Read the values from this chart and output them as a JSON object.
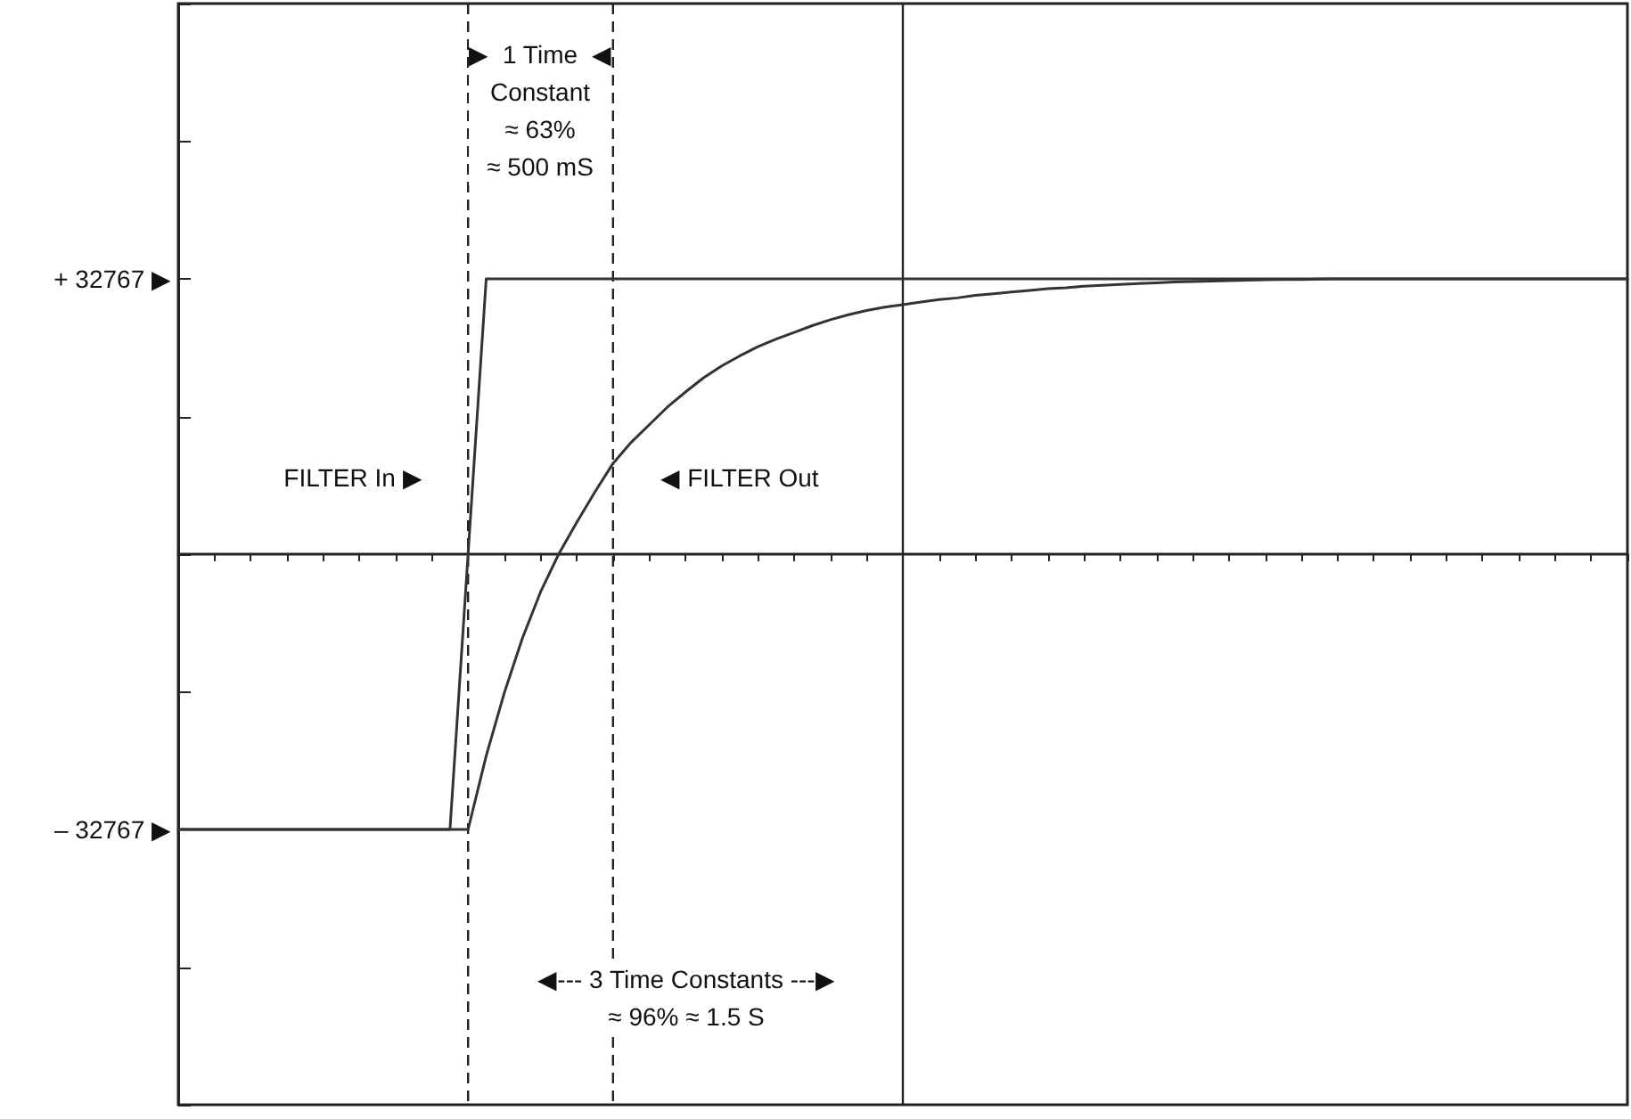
{
  "chart_data": {
    "type": "line",
    "tick_labels": "y",
    "categories": [
      null,
      null,
      null,
      null,
      null,
      null,
      null,
      null,
      null,
      null,
      null,
      null,
      null,
      null,
      null,
      null,
      null,
      null,
      null,
      null,
      null,
      null,
      null,
      null,
      null,
      null,
      null,
      null,
      null,
      null,
      null,
      null,
      null,
      null,
      null,
      null,
      null,
      null,
      null,
      null,
      null,
      null,
      null,
      null,
      null,
      null,
      null,
      null,
      null,
      null,
      null,
      null,
      null,
      null,
      null,
      null,
      null,
      null,
      null,
      null,
      null,
      null,
      null,
      null,
      null,
      null,
      null,
      null,
      null,
      null,
      null,
      null,
      null,
      null,
      null,
      null,
      null,
      null,
      null,
      null,
      null
    ],
    "ylim": [
      -65534,
      65534
    ],
    "yticks": [
      {
        "value": -65534,
        "label": null
      },
      {
        "value": -49150.5,
        "label": null
      },
      {
        "value": -32767,
        "label": "– 32767 ▶"
      },
      {
        "value": -16383.5,
        "label": null
      },
      {
        "value": 0,
        "label": null
      },
      {
        "value": 16383.5,
        "label": null
      },
      {
        "value": 32767,
        "label": "+ 32767 ▶"
      },
      {
        "value": 49150.5,
        "label": null
      },
      {
        "value": 65534,
        "label": null
      }
    ],
    "series": [
      {
        "color": "#333333",
        "values": [
          -32767,
          -32767,
          -32767,
          -32767,
          -32767,
          -32767,
          -32767,
          -32767,
          -32767,
          -32767,
          -32767,
          -32767,
          -32767,
          -32767,
          -32767,
          -32767,
          0,
          32767,
          32767,
          32767,
          32767,
          32767,
          32767,
          32767,
          32767,
          32767,
          32767,
          32767,
          32767,
          32767,
          32767,
          32767,
          32767,
          32767,
          32767,
          32767,
          32767,
          32767,
          32767,
          32767,
          32767,
          32767,
          32767,
          32767,
          32767,
          32767,
          32767,
          32767,
          32767,
          32767,
          32767,
          32767,
          32767,
          32767,
          32767,
          32767,
          32767,
          32767,
          32767,
          32767,
          32767,
          32767,
          32767,
          32767,
          32767,
          32767,
          32767,
          32767,
          32767,
          32767,
          32767,
          32767,
          32767,
          32767,
          32767,
          32767,
          32767,
          32767,
          32767,
          32767,
          32767
        ]
      },
      {
        "color": "#333333",
        "values": [
          -32767,
          -32767,
          -32767,
          -32767,
          -32767,
          -32767,
          -32767,
          -32767,
          -32767,
          -32767,
          -32767,
          -32767,
          -32767,
          -32767,
          -32767,
          -32767,
          -32767,
          -24000,
          -16500,
          -10000,
          -4500,
          0,
          3800,
          7400,
          10800,
          13300,
          15400,
          17500,
          19300,
          21000,
          22400,
          23600,
          24700,
          25600,
          26400,
          27200,
          27900,
          28500,
          29000,
          29400,
          29700,
          30000,
          30300,
          30500,
          30800,
          31000,
          31200,
          31400,
          31600,
          31700,
          31900,
          32000,
          32100,
          32200,
          32300,
          32400,
          32450,
          32500,
          32550,
          32600,
          32650,
          32700,
          32700,
          32750,
          32767,
          32767,
          32767,
          32767,
          32767,
          32767,
          32767,
          32767,
          32767,
          32767,
          32767,
          32767,
          32767,
          32767,
          32767,
          32767,
          32767
        ]
      }
    ],
    "annotations": [
      "▶  1 Time  ◀\nConstant\n≈ 63%\n≈ 500 mS",
      "FILTER In ▶",
      "◀ FILTER Out",
      "◀--- 3 Time Constants ---▶\n≈ 96% ≈ 1.5 S"
    ]
  }
}
